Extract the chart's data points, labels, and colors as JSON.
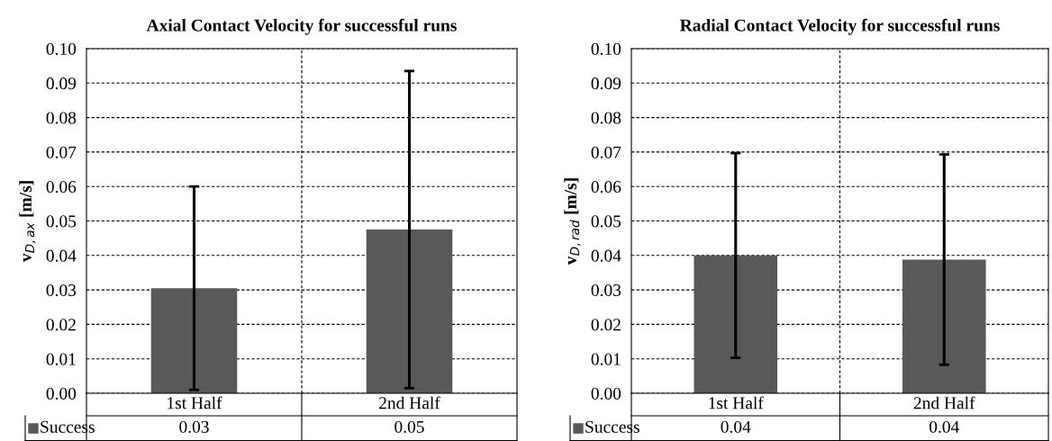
{
  "chart_data": [
    {
      "type": "bar",
      "title": "Axial Contact Velocity for successful runs",
      "ylabel": "v$_{D,ax}$ [m/s]",
      "categories": [
        "1st Half",
        "2nd Half"
      ],
      "series": [
        {
          "name": "Success",
          "color": "#595959",
          "values": [
            0.0305,
            0.0475
          ],
          "errors": [
            0.0295,
            0.046
          ],
          "value_labels": [
            "0.03",
            "0.05"
          ]
        }
      ],
      "ylim": [
        0,
        0.1
      ],
      "yticks": [
        {
          "value": 0,
          "label": "0.00"
        },
        {
          "value": 0.01,
          "label": "0.01"
        },
        {
          "value": 0.02,
          "label": "0.02"
        },
        {
          "value": 0.03,
          "label": "0.03"
        },
        {
          "value": 0.04,
          "label": "0.04"
        },
        {
          "value": 0.05,
          "label": "0.05"
        },
        {
          "value": 0.06,
          "label": "0.06"
        },
        {
          "value": 0.07,
          "label": "0.07"
        },
        {
          "value": 0.08,
          "label": "0.08"
        },
        {
          "value": 0.09,
          "label": "0.09"
        },
        {
          "value": 0.1,
          "label": "0.10"
        }
      ],
      "grid": true
    },
    {
      "type": "bar",
      "title": "Radial Contact Velocity for successful runs",
      "ylabel": "v$_{D,rad}$ [m/s]",
      "categories": [
        "1st Half",
        "2nd Half"
      ],
      "series": [
        {
          "name": "Success",
          "color": "#595959",
          "values": [
            0.04,
            0.0388
          ],
          "errors": [
            0.0297,
            0.0305
          ],
          "value_labels": [
            "0.04",
            "0.04"
          ]
        }
      ],
      "ylim": [
        0,
        0.1
      ],
      "yticks": [
        {
          "value": 0,
          "label": "0.00"
        },
        {
          "value": 0.01,
          "label": "0.01"
        },
        {
          "value": 0.02,
          "label": "0.02"
        },
        {
          "value": 0.03,
          "label": "0.03"
        },
        {
          "value": 0.04,
          "label": "0.04"
        },
        {
          "value": 0.05,
          "label": "0.05"
        },
        {
          "value": 0.06,
          "label": "0.06"
        },
        {
          "value": 0.07,
          "label": "0.07"
        },
        {
          "value": 0.08,
          "label": "0.08"
        },
        {
          "value": 0.09,
          "label": "0.09"
        },
        {
          "value": 0.1,
          "label": "0.10"
        }
      ],
      "grid": true
    }
  ]
}
